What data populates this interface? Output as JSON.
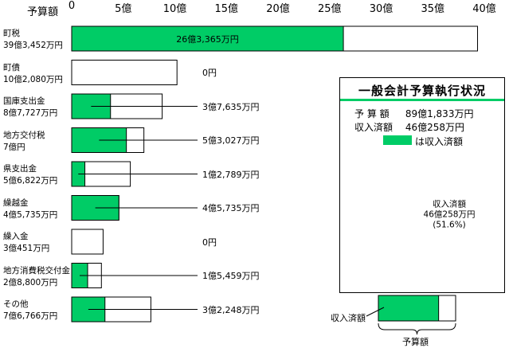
{
  "chart_data": {
    "type": "bar",
    "orientation": "horizontal",
    "xlabel": "予算額",
    "xlim": [
      0,
      40
    ],
    "x_ticks": [
      "0",
      "5億",
      "10億",
      "15億",
      "20億",
      "25億",
      "30億",
      "35億",
      "40億"
    ],
    "grid": false,
    "categories": [
      {
        "name": "町税",
        "budget_label": "39億3,452万円",
        "budget": 39.3452,
        "executed": 26.3365,
        "executed_label": "26億3,365万円",
        "label_position": "inside"
      },
      {
        "name": "町債",
        "budget_label": "10億2,080万円",
        "budget": 10.208,
        "executed": 0,
        "executed_label": "0円",
        "label_position": "outside"
      },
      {
        "name": "国庫支出金",
        "budget_label": "8億7,727万円",
        "budget": 8.7727,
        "executed": 3.7635,
        "executed_label": "3億7,635万円",
        "label_position": "outside"
      },
      {
        "name": "地方交付税",
        "budget_label": "7億円",
        "budget": 7.0,
        "executed": 5.3027,
        "executed_label": "5億3,027万円",
        "label_position": "outside"
      },
      {
        "name": "県支出金",
        "budget_label": "5億6,822万円",
        "budget": 5.6822,
        "executed": 1.2789,
        "executed_label": "1億2,789万円",
        "label_position": "outside"
      },
      {
        "name": "繰越金",
        "budget_label": "4億5,735万円",
        "budget": 4.5735,
        "executed": 4.5735,
        "executed_label": "4億5,735万円",
        "label_position": "outside"
      },
      {
        "name": "繰入金",
        "budget_label": "3億451万円",
        "budget": 3.0451,
        "executed": 0,
        "executed_label": "0円",
        "label_position": "outside"
      },
      {
        "name": "地方消費税交付金",
        "budget_label": "2億8,800万円",
        "budget": 2.88,
        "executed": 1.5459,
        "executed_label": "1億5,459万円",
        "label_position": "outside"
      },
      {
        "name": "その他",
        "budget_label": "7億6,766万円",
        "budget": 7.6766,
        "executed": 3.2248,
        "executed_label": "3億2,248万円",
        "label_position": "outside"
      }
    ],
    "summary": {
      "title": "一般会計予算執行状況",
      "budget_key": "予 算 額",
      "budget_value": "89億1,833万円",
      "executed_key": "収入済額",
      "executed_value": "46億258万円",
      "legend_label": "は収入済額",
      "pie": {
        "type": "pie",
        "executed_fraction": 0.516,
        "label_lines": [
          "収入済額",
          "46億258万円",
          "(51.6%)"
        ]
      }
    },
    "guide": {
      "executed_label": "収入済額",
      "budget_label": "予算額",
      "executed_fraction": 0.78
    },
    "colors": {
      "executed": "#00cc66",
      "budget_outline": "#000000",
      "accent_rule": "#00cc66"
    }
  }
}
